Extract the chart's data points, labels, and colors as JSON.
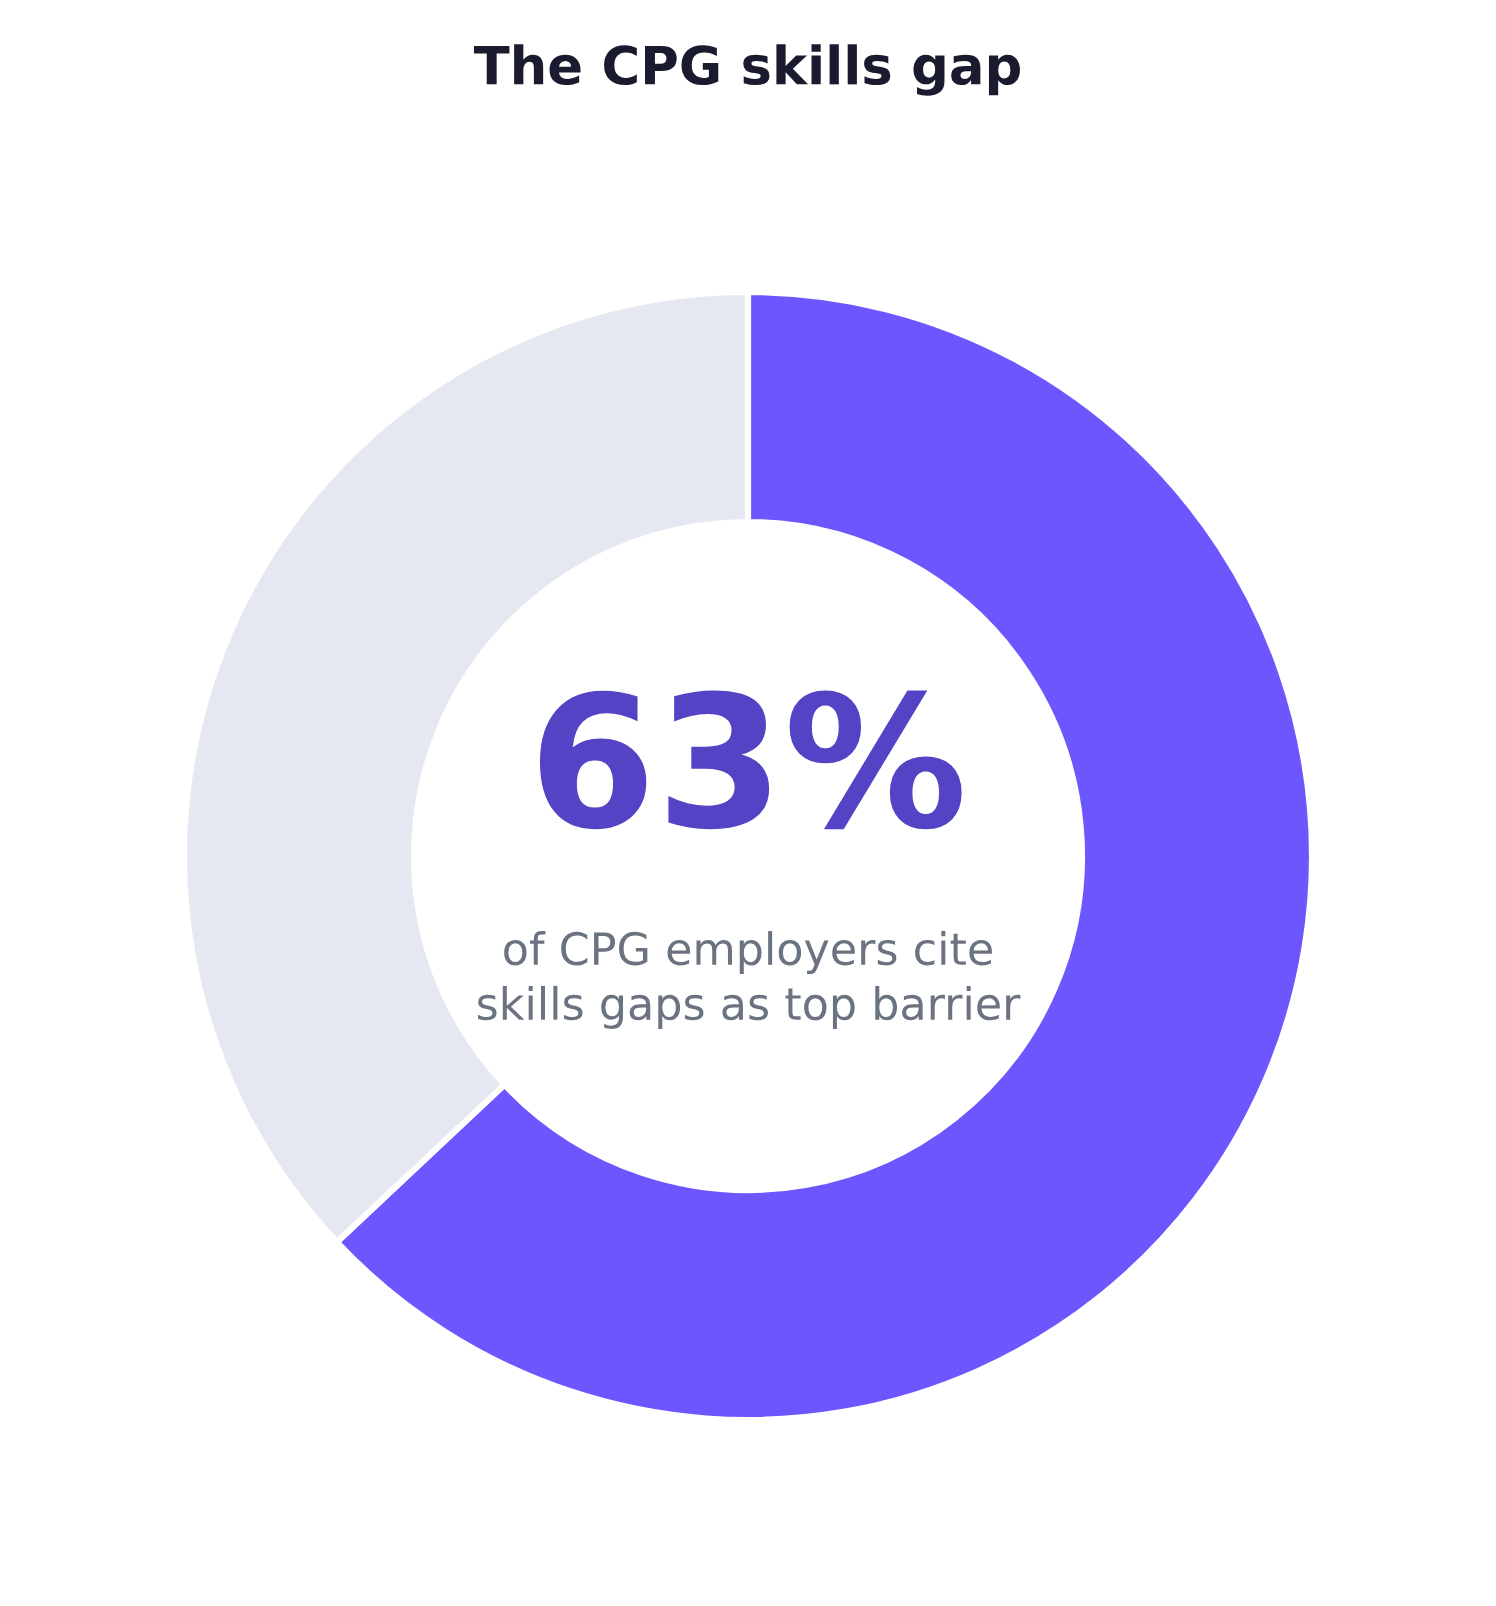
{
  "chart_data": {
    "type": "donut",
    "title": "The CPG skills gap",
    "categories": [
      null,
      null
    ],
    "values": [
      63,
      37
    ],
    "colors": [
      "#6c57ff",
      "#e5e7f1"
    ],
    "annotations": [
      "63%",
      "of CPG employers cite\nskills gaps as top barrier"
    ]
  }
}
